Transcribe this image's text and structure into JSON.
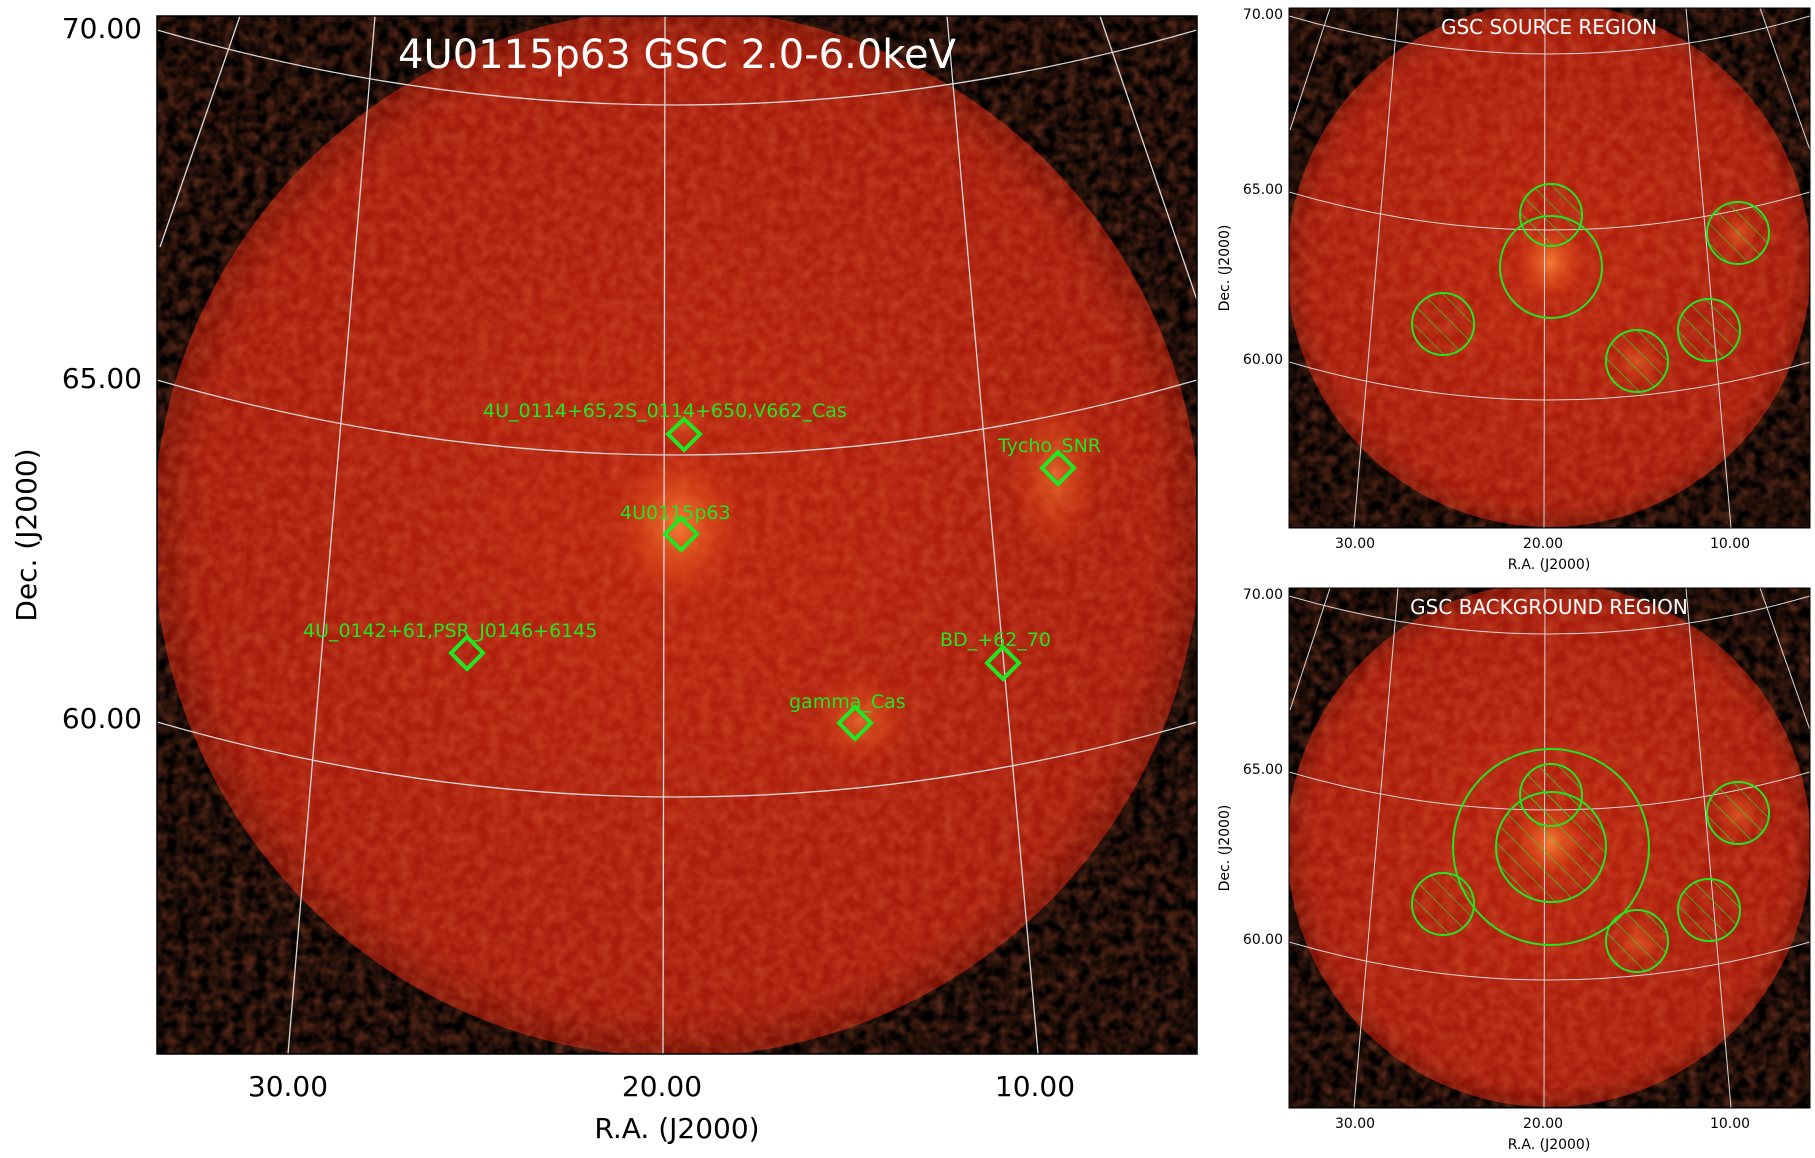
{
  "main_panel": {
    "title": "4U0115p63 GSC 2.0-6.0keV",
    "xlabel": "R.A. (J2000)",
    "ylabel": "Dec. (J2000)",
    "x_ticks": [
      "30.00",
      "20.00",
      "10.00"
    ],
    "y_ticks": [
      "70.00",
      "65.00",
      "60.00"
    ],
    "sources": [
      {
        "label": "4U_0114+65,2S_0114+650,V662_Cas"
      },
      {
        "label": "4U0115p63"
      },
      {
        "label": "Tycho_SNR"
      },
      {
        "label": "4U_0142+61,PSR_J0146+6145"
      },
      {
        "label": "BD_+62_70"
      },
      {
        "label": "gamma_Cas"
      }
    ]
  },
  "source_panel": {
    "title": "GSC SOURCE REGION",
    "xlabel": "R.A. (J2000)",
    "ylabel": "Dec. (J2000)",
    "x_ticks": [
      "30.00",
      "20.00",
      "10.00"
    ],
    "y_ticks": [
      "70.00",
      "65.00",
      "60.00"
    ]
  },
  "background_panel": {
    "title": "GSC BACKGROUND REGION",
    "xlabel": "R.A. (J2000)",
    "ylabel": "Dec. (J2000)",
    "x_ticks": [
      "30.00",
      "20.00",
      "10.00"
    ],
    "y_ticks": [
      "70.00",
      "65.00",
      "60.00"
    ]
  },
  "colors": {
    "disk": "#b51e0c",
    "sky_background": "#000000",
    "region_marker": "#22e622",
    "grid": "#d8d8d8"
  }
}
